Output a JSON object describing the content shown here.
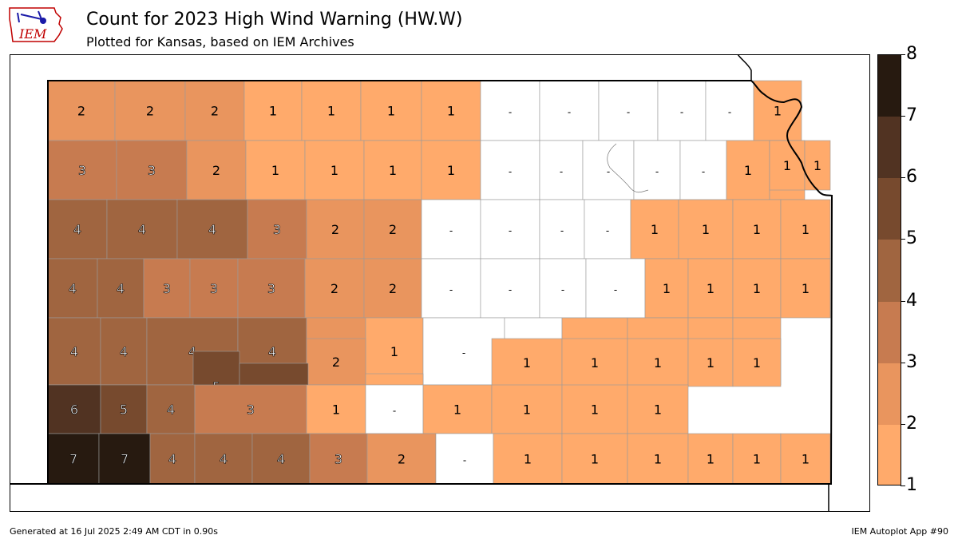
{
  "header": {
    "logo_text": "IEM",
    "title": "Count for 2023 High Wind Warning (HW.W)",
    "subtitle": "Plotted for Kansas, based on IEM Archives"
  },
  "footer": {
    "generated": "Generated at 16 Jul 2025 2:49 AM CDT in 0.90s",
    "app": "IEM Autoplot App #90"
  },
  "colors": {
    "1": "#ffaa6b",
    "2": "#e9955e",
    "3": "#c77b50",
    "4": "#a06540",
    "5": "#774a2e",
    "6": "#513322",
    "7": "#271a10",
    "0": "#ffffff"
  },
  "legend": {
    "min": 1,
    "max": 8,
    "labels": [
      "8",
      "7",
      "6",
      "5",
      "4",
      "3",
      "2",
      "1"
    ],
    "colors": [
      "#271a10",
      "#513322",
      "#774a2e",
      "#a06540",
      "#c77b50",
      "#e9955e",
      "#ffaa6b"
    ]
  },
  "counties": [
    {
      "v": 2,
      "t": "2"
    },
    {
      "v": 2,
      "t": "2"
    },
    {
      "v": 2,
      "t": "2"
    },
    {
      "v": 1,
      "t": "1"
    },
    {
      "v": 1,
      "t": "1"
    },
    {
      "v": 1,
      "t": "1"
    },
    {
      "v": 1,
      "t": "1"
    },
    {
      "v": 0,
      "t": "-"
    },
    {
      "v": 0,
      "t": "-"
    },
    {
      "v": 0,
      "t": "-"
    },
    {
      "v": 0,
      "t": "-"
    },
    {
      "v": 0,
      "t": "-"
    },
    {
      "v": 1,
      "t": "1"
    },
    {
      "v": 3,
      "t": "3"
    },
    {
      "v": 3,
      "t": "3"
    },
    {
      "v": 2,
      "t": "2"
    },
    {
      "v": 1,
      "t": "1"
    },
    {
      "v": 1,
      "t": "1"
    },
    {
      "v": 1,
      "t": "1"
    },
    {
      "v": 1,
      "t": "1"
    },
    {
      "v": 0,
      "t": "-"
    },
    {
      "v": 0,
      "t": "-"
    },
    {
      "v": 0,
      "t": "-"
    },
    {
      "v": 0,
      "t": "-"
    },
    {
      "v": 0,
      "t": "-"
    },
    {
      "v": 1,
      "t": "1"
    },
    {
      "v": 1,
      "t": "1"
    },
    {
      "v": 1,
      "t": "1"
    },
    {
      "v": 1,
      "t": "1"
    },
    {
      "v": 4,
      "t": "4"
    },
    {
      "v": 4,
      "t": "4"
    },
    {
      "v": 4,
      "t": "4"
    },
    {
      "v": 3,
      "t": "3"
    },
    {
      "v": 2,
      "t": "2"
    },
    {
      "v": 2,
      "t": "2"
    },
    {
      "v": 0,
      "t": "-"
    },
    {
      "v": 0,
      "t": "-"
    },
    {
      "v": 0,
      "t": "-"
    },
    {
      "v": 0,
      "t": "-"
    },
    {
      "v": 1,
      "t": "1"
    },
    {
      "v": 1,
      "t": "1"
    },
    {
      "v": 1,
      "t": "1"
    },
    {
      "v": 1,
      "t": "1"
    },
    {
      "v": 4,
      "t": "4"
    },
    {
      "v": 4,
      "t": "4"
    },
    {
      "v": 3,
      "t": "3"
    },
    {
      "v": 3,
      "t": "3"
    },
    {
      "v": 3,
      "t": "3"
    },
    {
      "v": 2,
      "t": "2"
    },
    {
      "v": 2,
      "t": "2"
    },
    {
      "v": 0,
      "t": "-"
    },
    {
      "v": 0,
      "t": "-"
    },
    {
      "v": 0,
      "t": "-"
    },
    {
      "v": 0,
      "t": "-"
    },
    {
      "v": 1,
      "t": "1"
    },
    {
      "v": 1,
      "t": "1"
    },
    {
      "v": 1,
      "t": "1"
    },
    {
      "v": 1,
      "t": "1"
    },
    {
      "v": 4,
      "t": "4"
    },
    {
      "v": 4,
      "t": "4"
    },
    {
      "v": 4,
      "t": "4"
    },
    {
      "v": 4,
      "t": "4"
    },
    {
      "v": 2,
      "t": "2"
    },
    {
      "v": 1,
      "t": "1"
    },
    {
      "v": 0,
      "t": "-"
    },
    {
      "v": 0,
      "t": "-"
    },
    {
      "v": 1,
      "t": "1"
    },
    {
      "v": 1,
      "t": "1"
    },
    {
      "v": 1,
      "t": "1"
    },
    {
      "v": 1,
      "t": "1"
    },
    {
      "v": 2,
      "t": "2"
    },
    {
      "v": 5,
      "t": "5"
    },
    {
      "v": 5,
      "t": "5"
    },
    {
      "v": 1,
      "t": "1"
    },
    {
      "v": 1,
      "t": "1"
    },
    {
      "v": 1,
      "t": "1"
    },
    {
      "v": 1,
      "t": "1"
    },
    {
      "v": 1,
      "t": "1"
    },
    {
      "v": 1,
      "t": "1"
    },
    {
      "v": 6,
      "t": "6"
    },
    {
      "v": 5,
      "t": "5"
    },
    {
      "v": 4,
      "t": "4"
    },
    {
      "v": 3,
      "t": "3"
    },
    {
      "v": 1,
      "t": "1"
    },
    {
      "v": 0,
      "t": "-"
    },
    {
      "v": 1,
      "t": "1"
    },
    {
      "v": 1,
      "t": "1"
    },
    {
      "v": 1,
      "t": "1"
    },
    {
      "v": 1,
      "t": "1"
    },
    {
      "v": 7,
      "t": "7"
    },
    {
      "v": 7,
      "t": "7"
    },
    {
      "v": 4,
      "t": "4"
    },
    {
      "v": 4,
      "t": "4"
    },
    {
      "v": 4,
      "t": "4"
    },
    {
      "v": 3,
      "t": "3"
    },
    {
      "v": 2,
      "t": "2"
    },
    {
      "v": 0,
      "t": "-"
    },
    {
      "v": 1,
      "t": "1"
    },
    {
      "v": 1,
      "t": "1"
    },
    {
      "v": 1,
      "t": "1"
    },
    {
      "v": 1,
      "t": "1"
    },
    {
      "v": 1,
      "t": "1"
    },
    {
      "v": 1,
      "t": "1"
    }
  ]
}
